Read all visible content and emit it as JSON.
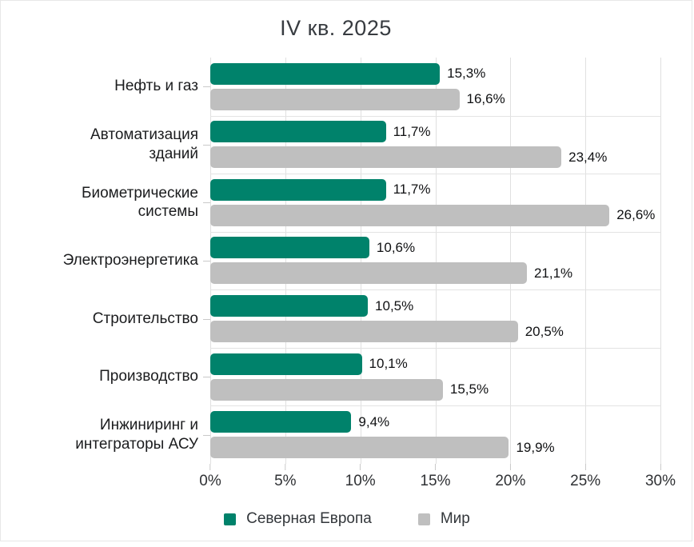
{
  "chart_data": {
    "type": "bar",
    "orientation": "horizontal",
    "title": "IV кв. 2025",
    "categories": [
      "Нефть и газ",
      "Автоматизация\nзданий",
      "Биометрические\nсистемы",
      "Электроэнергетика",
      "Строительство",
      "Производство",
      "Инжиниринг и\nинтеграторы АСУ"
    ],
    "series": [
      {
        "name": "Северная Европа",
        "color": "#00826b",
        "values": [
          15.3,
          11.7,
          11.7,
          10.6,
          10.5,
          10.1,
          9.4
        ],
        "value_labels": [
          "15,3%",
          "11,7%",
          "11,7%",
          "10,6%",
          "10,5%",
          "10,1%",
          "9,4%"
        ]
      },
      {
        "name": "Мир",
        "color": "#bfbfbf",
        "values": [
          16.6,
          23.4,
          26.6,
          21.1,
          20.5,
          15.5,
          19.9
        ],
        "value_labels": [
          "16,6%",
          "23,4%",
          "26,6%",
          "21,1%",
          "20,5%",
          "15,5%",
          "19,9%"
        ]
      }
    ],
    "x_axis": {
      "min": 0,
      "max": 30,
      "step": 5,
      "tick_labels": [
        "0%",
        "5%",
        "10%",
        "15%",
        "20%",
        "25%",
        "30%"
      ]
    },
    "grid": true,
    "legend_position": "bottom",
    "colors": {
      "gridline": "#e0e0e0",
      "tick": "#c9c9c9",
      "title_text": "#373b40",
      "label_text": "#1b1c1e",
      "value_text": "#101113"
    }
  }
}
